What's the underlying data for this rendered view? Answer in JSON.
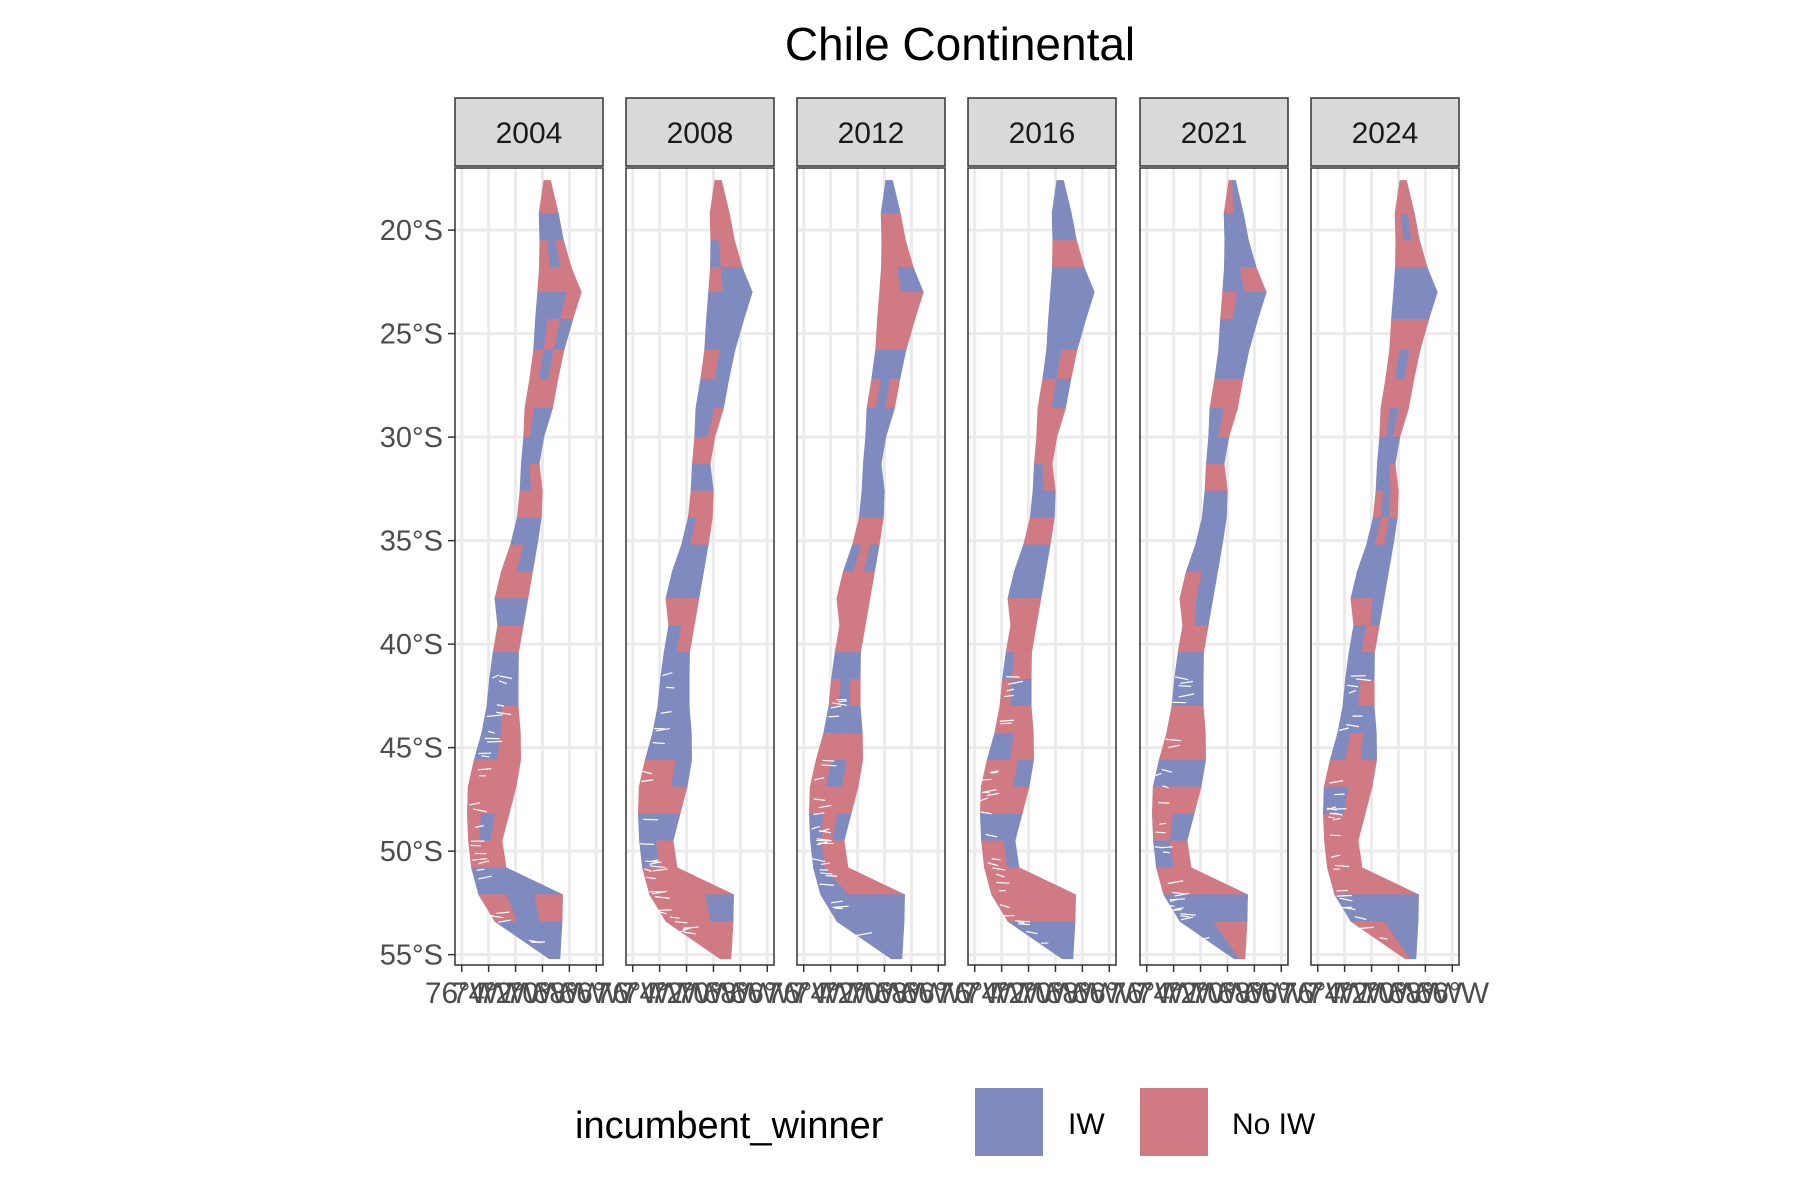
{
  "title": "Chile Continental",
  "facets": [
    "2004",
    "2008",
    "2012",
    "2016",
    "2021",
    "2024"
  ],
  "y_axis": {
    "ticks": [
      {
        "lat": -20,
        "label": "20°S"
      },
      {
        "lat": -25,
        "label": "25°S"
      },
      {
        "lat": -30,
        "label": "30°S"
      },
      {
        "lat": -35,
        "label": "35°S"
      },
      {
        "lat": -40,
        "label": "40°S"
      },
      {
        "lat": -45,
        "label": "45°S"
      },
      {
        "lat": -50,
        "label": "50°S"
      },
      {
        "lat": -55,
        "label": "55°S"
      }
    ]
  },
  "x_axis": {
    "ticks": [
      {
        "lon": -76,
        "label": "76°W"
      },
      {
        "lon": -74,
        "label": "74°W"
      },
      {
        "lon": -72,
        "label": "72°W"
      },
      {
        "lon": -70,
        "label": "70°W"
      },
      {
        "lon": -68,
        "label": "68°W"
      },
      {
        "lon": -66,
        "label": "66°W"
      }
    ]
  },
  "legend": {
    "title": "incumbent_winner",
    "items": [
      {
        "label": "IW",
        "color": "#7f8abf"
      },
      {
        "label": "No IW",
        "color": "#d07a84"
      }
    ]
  },
  "chart_data": {
    "type": "choropleth",
    "variable": "incumbent_winner",
    "categories": [
      "IW",
      "No IW"
    ],
    "colors": {
      "IW": "#7f8abf",
      "No IW": "#d07a84"
    },
    "xlim": [
      -76.5,
      -65.5
    ],
    "ylim": [
      -55.5,
      -17
    ],
    "grid": true
  }
}
